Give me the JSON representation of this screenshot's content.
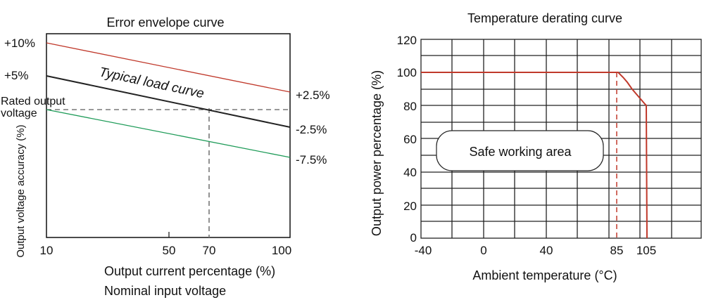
{
  "chart_data": [
    {
      "type": "line",
      "title": "Error envelope curve",
      "xlabel": "Output current percentage (%)",
      "subtitle": "Nominal input voltage",
      "ylabel": "Output voltage accuracy (%)",
      "xlim": [
        10,
        100
      ],
      "x_ticks": [
        10,
        50,
        70,
        100
      ],
      "left_labels": [
        {
          "text": "+10%",
          "y": 10
        },
        {
          "text": "+5%",
          "y": 5
        }
      ],
      "rated_label_line1": "Rated output",
      "rated_label_line2": "voltage",
      "series": [
        {
          "key": "upper",
          "label": "+2.5%",
          "color": "#c0392b",
          "x": [
            10,
            100
          ],
          "y": [
            10,
            2.5
          ]
        },
        {
          "name": "Typical load curve",
          "key": "typical",
          "label": "-2.5%",
          "color": "#222222",
          "x": [
            10,
            100
          ],
          "y": [
            5,
            -2.5
          ]
        },
        {
          "key": "lower",
          "label": "-7.5%",
          "color": "#1e9b58",
          "x": [
            10,
            100
          ],
          "y": [
            0,
            -7.5
          ]
        }
      ],
      "rated_y": 0,
      "marker_x": 70
    },
    {
      "type": "line",
      "title": "Temperature derating curve",
      "xlabel": "Ambient temperature (°C)",
      "ylabel": "Output power percentage (%)",
      "ylim": [
        0,
        120
      ],
      "y_ticks": [
        0,
        20,
        40,
        60,
        80,
        100,
        120
      ],
      "x_ticks": [
        "-40",
        "0",
        "40",
        "85",
        "105"
      ],
      "series": [
        {
          "color": "#c0392b",
          "x": [
            -40,
            85,
            88,
            91,
            95,
            98,
            101,
            102,
            102,
            103
          ],
          "y": [
            100,
            100,
            97,
            93,
            88,
            85,
            82,
            80,
            80,
            0
          ]
        }
      ],
      "dashed_x": 85,
      "annotation": "Safe working area"
    }
  ]
}
